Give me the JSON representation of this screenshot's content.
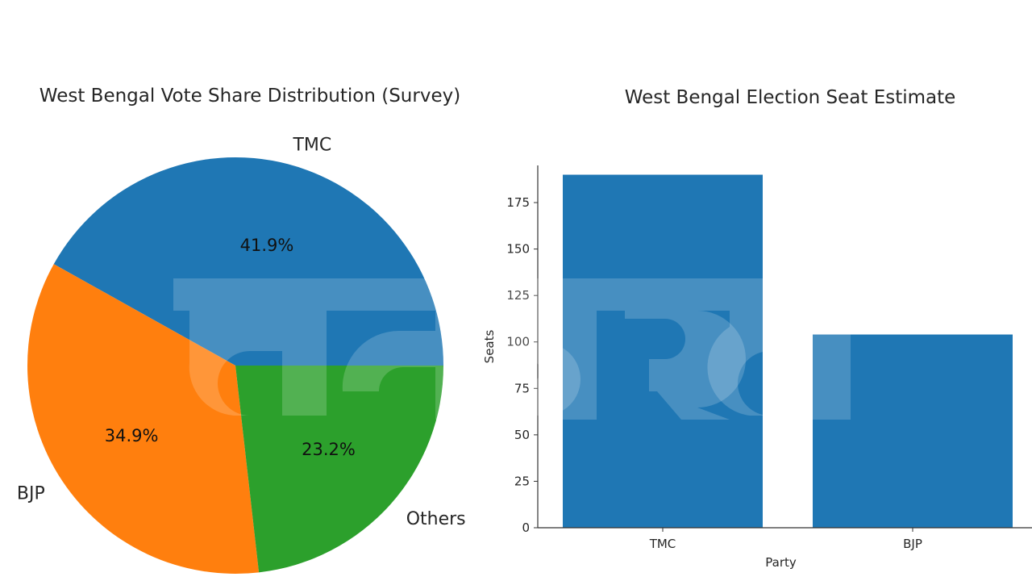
{
  "pie_chart": {
    "title": "West Bengal Vote Share Distribution (Survey)",
    "slices": [
      {
        "label": "TMC",
        "pct_label": "41.9%",
        "value": 41.9,
        "color": "#1f77b4"
      },
      {
        "label": "BJP",
        "pct_label": "34.9%",
        "value": 34.9,
        "color": "#ff7f0e"
      },
      {
        "label": "Others",
        "pct_label": "23.2%",
        "value": 23.2,
        "color": "#2ca02c"
      }
    ]
  },
  "bar_chart": {
    "title": "West Bengal Election Seat Estimate",
    "xlabel": "Party",
    "ylabel": "Seats",
    "yticks": [
      "0",
      "25",
      "50",
      "75",
      "100",
      "125",
      "150",
      "175"
    ],
    "categories": [
      "TMC",
      "BJP"
    ],
    "bar_color": "#1f77b4"
  },
  "watermark": {
    "text": "नवभारत"
  },
  "chart_data": [
    {
      "type": "pie",
      "title": "West Bengal Vote Share Distribution (Survey)",
      "categories": [
        "TMC",
        "BJP",
        "Others"
      ],
      "values": [
        41.9,
        34.9,
        23.2
      ],
      "labels": [
        "41.9%",
        "34.9%",
        "23.2%"
      ],
      "colors": [
        "#1f77b4",
        "#ff7f0e",
        "#2ca02c"
      ],
      "startangle": 0
    },
    {
      "type": "bar",
      "title": "West Bengal Election Seat Estimate",
      "categories": [
        "TMC",
        "BJP"
      ],
      "values": [
        190,
        104
      ],
      "xlabel": "Party",
      "ylabel": "Seats",
      "ylim": [
        0,
        195
      ],
      "yticks": [
        0,
        25,
        50,
        75,
        100,
        125,
        150,
        175
      ],
      "grid": false
    }
  ]
}
